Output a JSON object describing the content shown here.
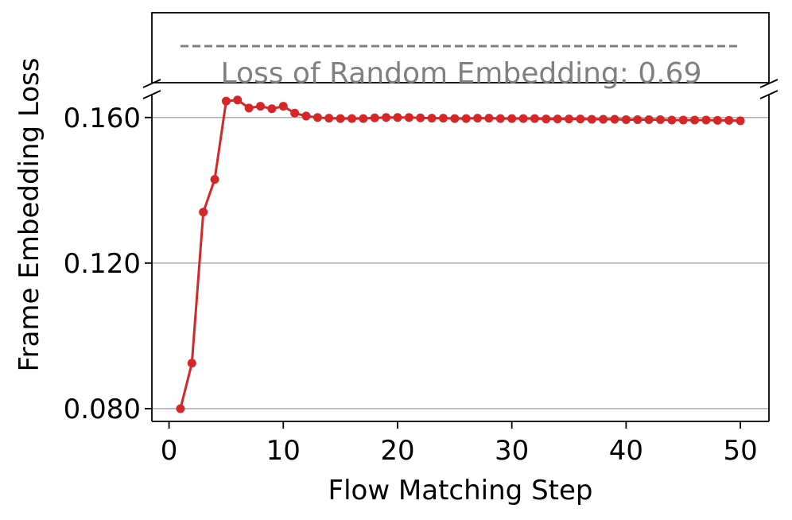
{
  "chart_data": {
    "type": "line",
    "xlabel": "Flow Matching Step",
    "ylabel": "Frame Embedding Loss",
    "xlim": [
      -1.5,
      52.5
    ],
    "ylim": [
      0.0765,
      0.1665
    ],
    "xticks": [
      0,
      10,
      20,
      30,
      40,
      50
    ],
    "yticks": [
      0.08,
      0.12,
      0.16
    ],
    "xtick_labels": [
      "0",
      "10",
      "20",
      "30",
      "40",
      "50"
    ],
    "ytick_labels": [
      "0.080",
      "0.120",
      "0.160"
    ],
    "grid": "horizontal",
    "broken_y_axis": true,
    "color": "#d62728",
    "reference": {
      "label": "Loss of Random Embedding: 0.69",
      "value": 0.69,
      "color": "#808080",
      "style": "dashed"
    },
    "series": [
      {
        "x": [
          1,
          2,
          3,
          4,
          5,
          6,
          7,
          8,
          9,
          10,
          11,
          12,
          13,
          14,
          15,
          16,
          17,
          18,
          19,
          20,
          21,
          22,
          23,
          24,
          25,
          26,
          27,
          28,
          29,
          30,
          31,
          32,
          33,
          34,
          35,
          36,
          37,
          38,
          39,
          40,
          41,
          42,
          43,
          44,
          45,
          46,
          47,
          48,
          49,
          50
        ],
        "values": [
          0.08,
          0.0925,
          0.134,
          0.143,
          0.1645,
          0.1648,
          0.1626,
          0.1631,
          0.1624,
          0.1631,
          0.1612,
          0.1604,
          0.16,
          0.1598,
          0.1597,
          0.1597,
          0.1597,
          0.1599,
          0.16,
          0.16,
          0.16,
          0.1599,
          0.1598,
          0.1598,
          0.1597,
          0.1597,
          0.1598,
          0.1598,
          0.1597,
          0.1597,
          0.1597,
          0.1597,
          0.1596,
          0.1596,
          0.1596,
          0.1596,
          0.1595,
          0.1595,
          0.1595,
          0.1594,
          0.1594,
          0.1594,
          0.1594,
          0.1593,
          0.1593,
          0.1593,
          0.1593,
          0.1592,
          0.1592,
          0.1591
        ]
      }
    ]
  }
}
